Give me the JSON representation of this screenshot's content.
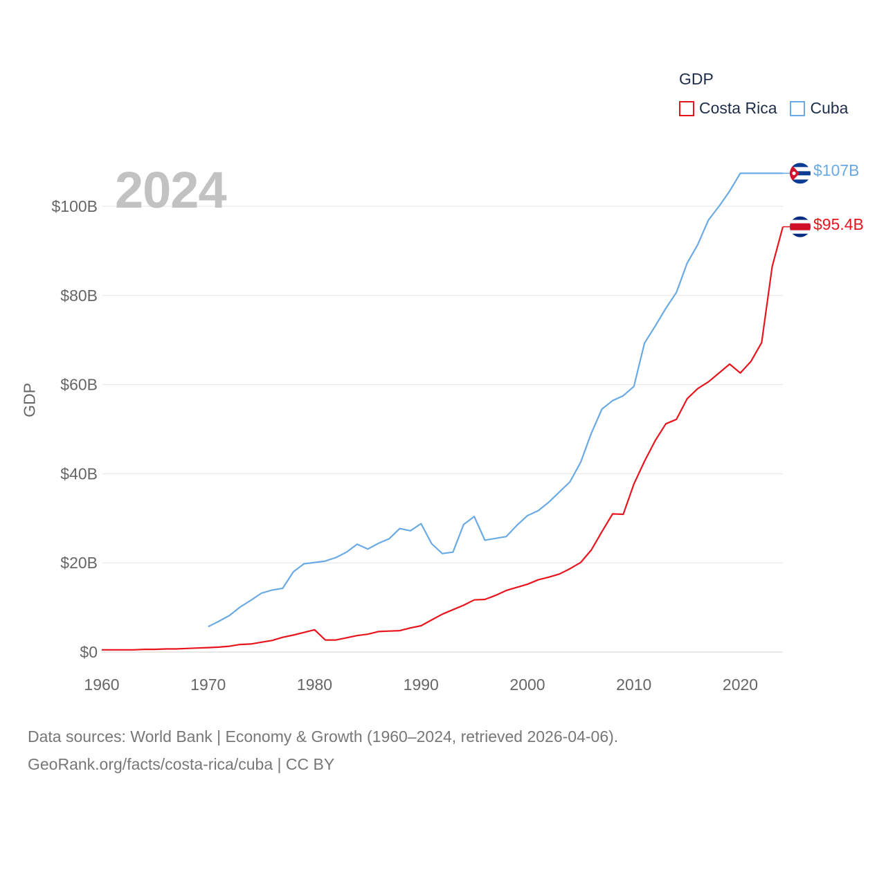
{
  "legend": {
    "title": "GDP",
    "items": [
      {
        "label": "Costa Rica",
        "color": "#e8141d"
      },
      {
        "label": "Cuba",
        "color": "#6aaae4"
      }
    ]
  },
  "year_label": "2024",
  "source": {
    "line1": "Data sources: World Bank | Economy & Growth (1960–2024, retrieved 2026-04-06).",
    "line2": "GeoRank.org/facts/costa-rica/cuba | CC BY"
  },
  "end_labels": {
    "cuba": "$107B",
    "costa_rica": "$95.4B"
  },
  "chart_data": {
    "type": "line",
    "title": "GDP",
    "xlabel": "",
    "ylabel": "GDP",
    "xlim": [
      1960,
      2024
    ],
    "ylim": [
      0,
      110
    ],
    "y_ticks": [
      0,
      20,
      40,
      60,
      80,
      100
    ],
    "y_tick_labels": [
      "$0",
      "$20B",
      "$40B",
      "$60B",
      "$80B",
      "$100B"
    ],
    "x_ticks": [
      1960,
      1970,
      1980,
      1990,
      2000,
      2010,
      2020
    ],
    "x_tick_labels": [
      "1960",
      "1970",
      "1980",
      "1990",
      "2000",
      "2010",
      "2020"
    ],
    "grid": true,
    "series": [
      {
        "name": "Costa Rica",
        "color": "#e8141d",
        "x": [
          1960,
          1961,
          1962,
          1963,
          1964,
          1965,
          1966,
          1967,
          1968,
          1969,
          1970,
          1971,
          1972,
          1973,
          1974,
          1975,
          1976,
          1977,
          1978,
          1979,
          1980,
          1981,
          1982,
          1983,
          1984,
          1985,
          1986,
          1987,
          1988,
          1989,
          1990,
          1991,
          1992,
          1993,
          1994,
          1995,
          1996,
          1997,
          1998,
          1999,
          2000,
          2001,
          2002,
          2003,
          2004,
          2005,
          2006,
          2007,
          2008,
          2009,
          2010,
          2011,
          2012,
          2013,
          2014,
          2015,
          2016,
          2017,
          2018,
          2019,
          2020,
          2021,
          2022,
          2023,
          2024
        ],
        "values": [
          0.5,
          0.5,
          0.5,
          0.5,
          0.6,
          0.6,
          0.7,
          0.7,
          0.8,
          0.9,
          1.0,
          1.1,
          1.3,
          1.7,
          1.8,
          2.2,
          2.6,
          3.3,
          3.8,
          4.4,
          5.0,
          2.7,
          2.7,
          3.2,
          3.7,
          4.0,
          4.6,
          4.7,
          4.8,
          5.4,
          5.9,
          7.2,
          8.5,
          9.5,
          10.5,
          11.7,
          11.8,
          12.7,
          13.8,
          14.5,
          15.2,
          16.2,
          16.8,
          17.5,
          18.7,
          20.1,
          22.9,
          27.0,
          31.0,
          30.9,
          37.7,
          42.8,
          47.4,
          51.2,
          52.2,
          56.8,
          59.1,
          60.6,
          62.6,
          64.6,
          62.6,
          65.2,
          69.4,
          86.5,
          95.4
        ],
        "end_label": "$95.4B"
      },
      {
        "name": "Cuba",
        "color": "#6aaae4",
        "x": [
          1970,
          1971,
          1972,
          1973,
          1974,
          1975,
          1976,
          1977,
          1978,
          1979,
          1980,
          1981,
          1982,
          1983,
          1984,
          1985,
          1986,
          1987,
          1988,
          1989,
          1990,
          1991,
          1992,
          1993,
          1994,
          1995,
          1996,
          1997,
          1998,
          1999,
          2000,
          2001,
          2002,
          2003,
          2004,
          2005,
          2006,
          2007,
          2008,
          2009,
          2010,
          2011,
          2012,
          2013,
          2014,
          2015,
          2016,
          2017,
          2018,
          2019,
          2020,
          2021,
          2022,
          2023,
          2024
        ],
        "values": [
          5.7,
          6.9,
          8.2,
          10.1,
          11.6,
          13.2,
          13.9,
          14.3,
          18.0,
          19.8,
          20.1,
          20.4,
          21.2,
          22.4,
          24.2,
          23.1,
          24.4,
          25.4,
          27.7,
          27.2,
          28.8,
          24.3,
          22.1,
          22.4,
          28.6,
          30.4,
          25.1,
          25.5,
          25.9,
          28.4,
          30.6,
          31.7,
          33.6,
          35.9,
          38.2,
          42.6,
          49.1,
          54.5,
          56.4,
          57.5,
          59.6,
          69.3,
          73.1,
          77.1,
          80.7,
          87.2,
          91.4,
          96.9,
          100.0,
          103.4,
          107.4,
          107.4,
          107.4,
          107.4,
          107.4
        ],
        "end_label": "$107B"
      }
    ]
  }
}
